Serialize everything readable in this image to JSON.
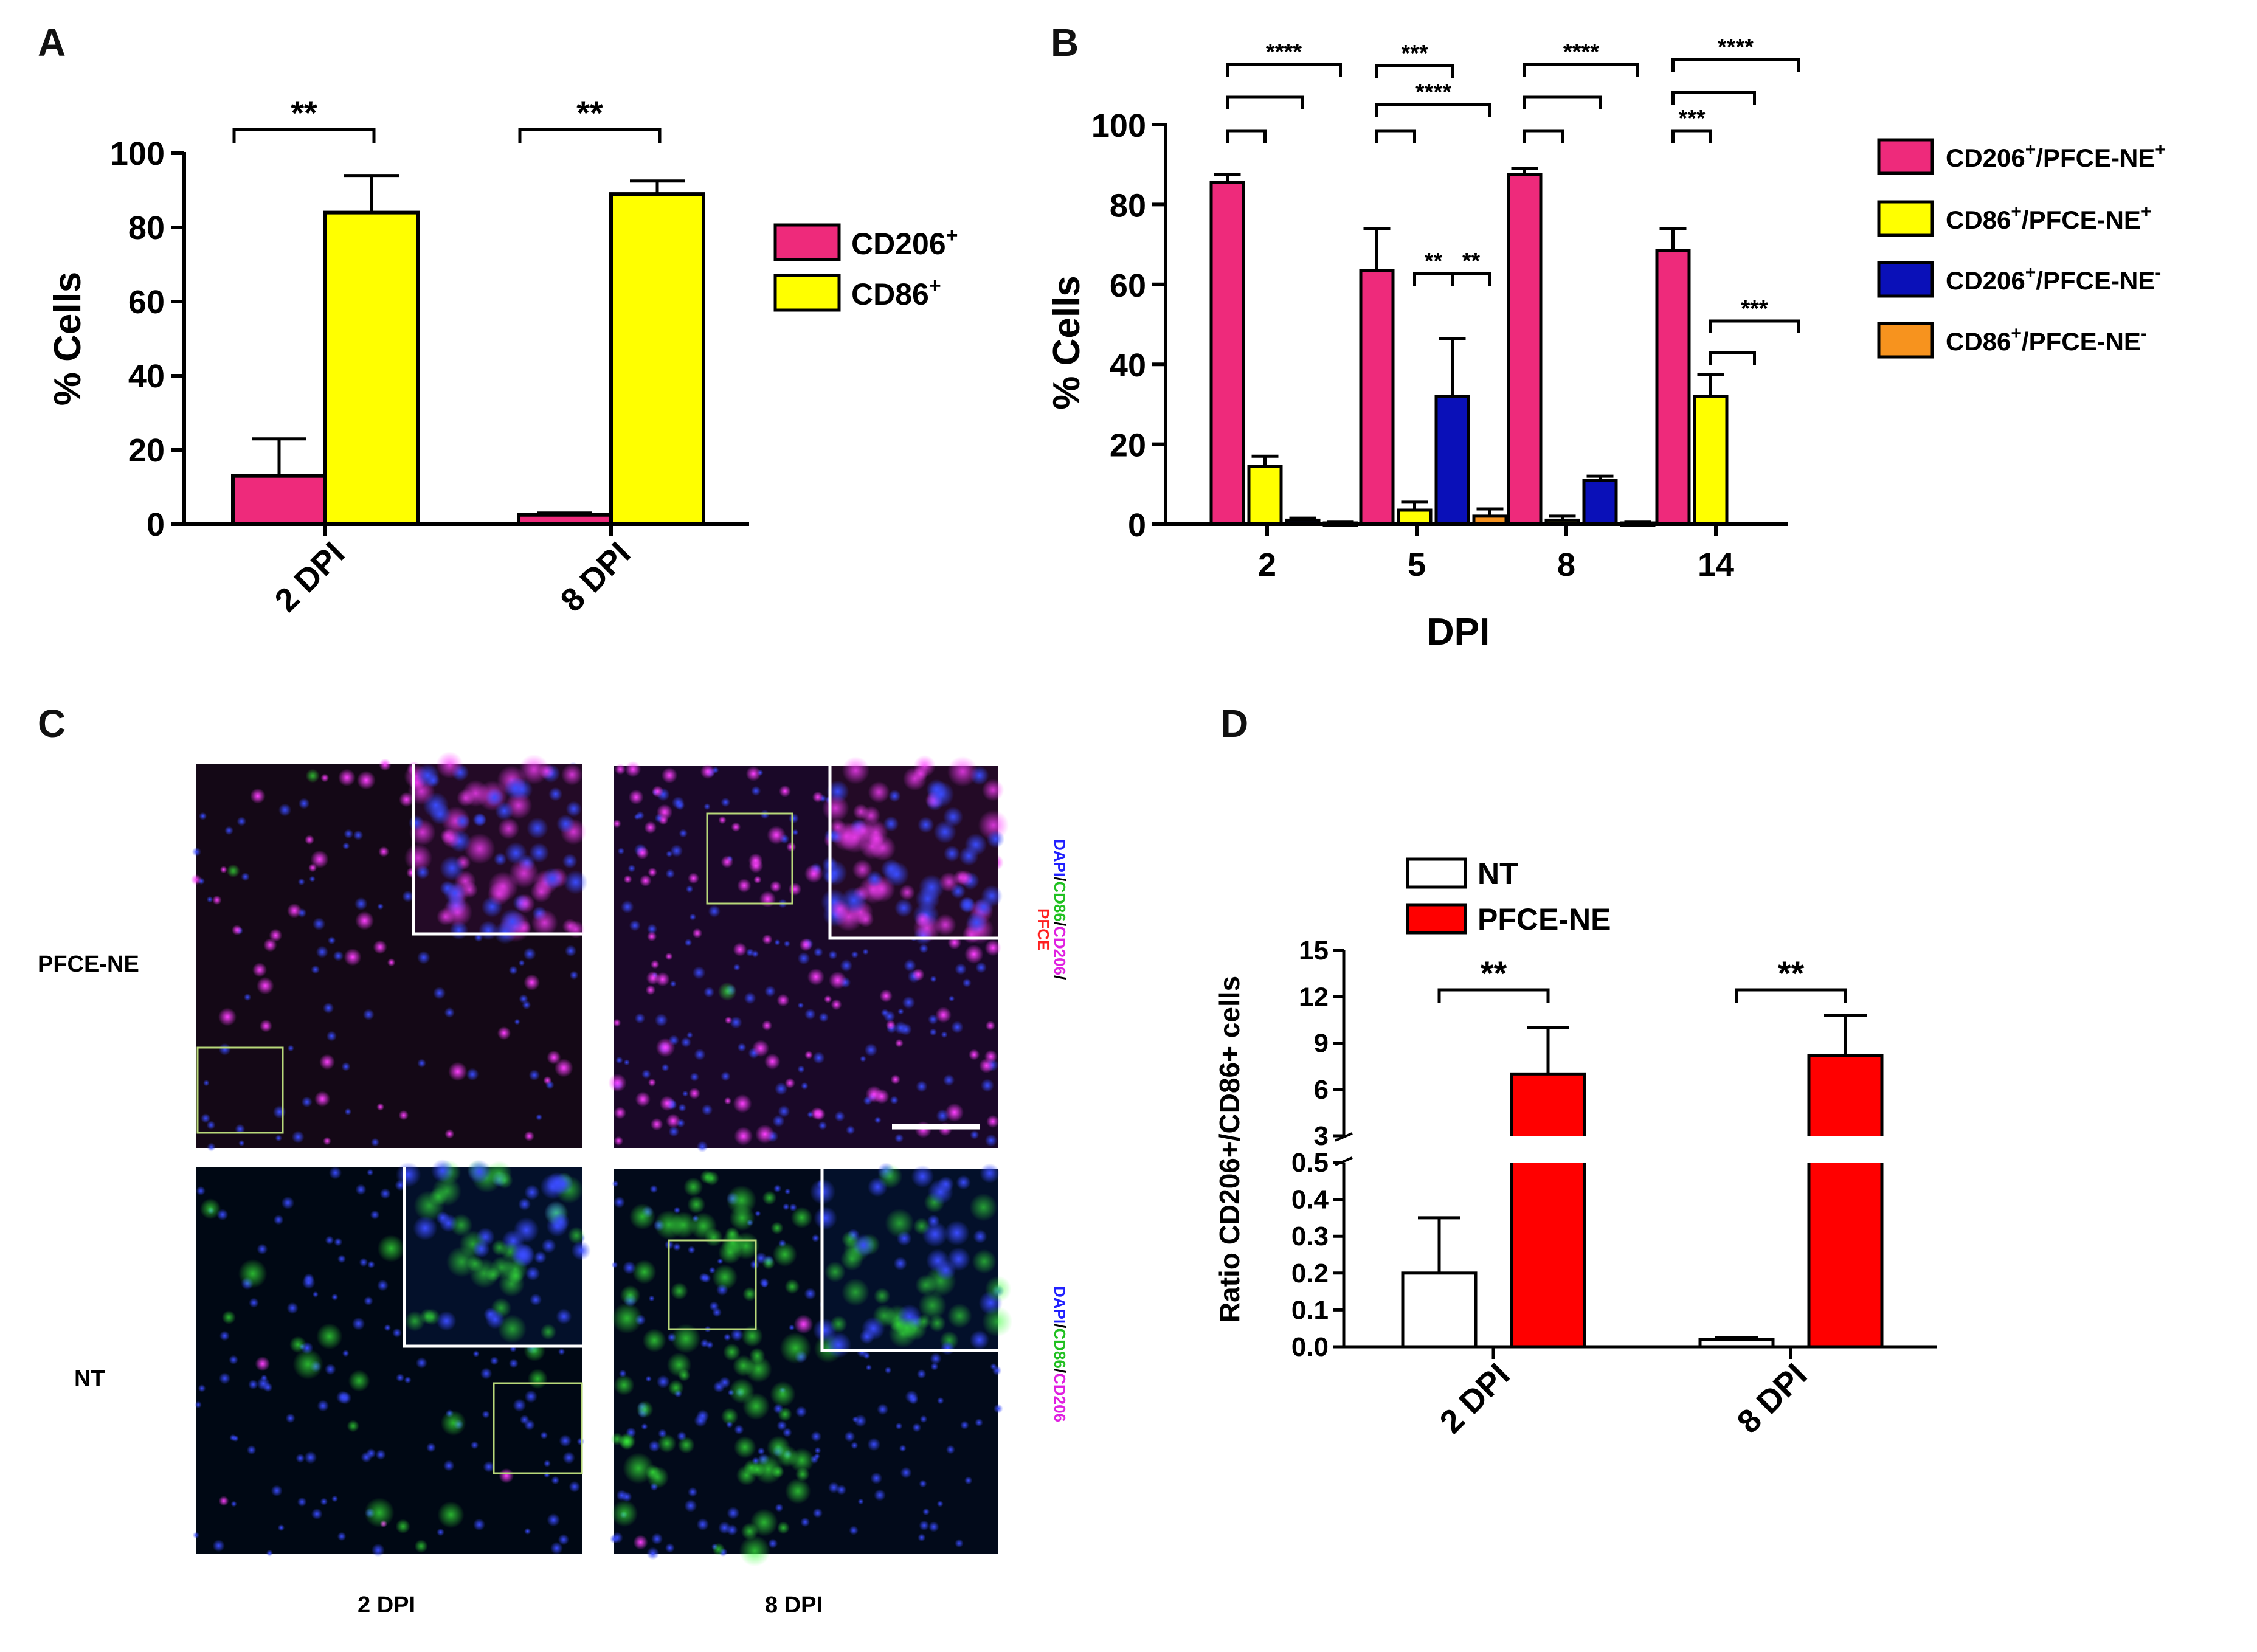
{
  "panels": {
    "a": "A",
    "b": "B",
    "c": "C",
    "d": "D"
  },
  "colors": {
    "magenta": "#ee2a7b",
    "yellow": "#ffff00",
    "blue": "#0a10b8",
    "orange": "#f7931e",
    "red": "#ff0000",
    "white": "#ffffff"
  },
  "chart_data": [
    {
      "panel": "A",
      "type": "bar",
      "categories": [
        "2 DPI",
        "8 DPI"
      ],
      "series": [
        {
          "name": "CD206",
          "sup": "+",
          "color": "#ee2a7b",
          "values": [
            13,
            2.5
          ],
          "errors": [
            10,
            0.5
          ]
        },
        {
          "name": "CD86",
          "sup": "+",
          "color": "#ffff00",
          "values": [
            84,
            89
          ],
          "errors": [
            10,
            3.5
          ]
        }
      ],
      "ylabel": "% Cells",
      "ylim": [
        0,
        100
      ],
      "yticks": [
        0,
        20,
        40,
        60,
        80,
        100
      ],
      "legend_position": "right",
      "significance": [
        {
          "category": 0,
          "from": 0,
          "to": 1,
          "label": "**"
        },
        {
          "category": 1,
          "from": 0,
          "to": 1,
          "label": "**"
        }
      ]
    },
    {
      "panel": "B",
      "type": "bar",
      "categories": [
        "2",
        "5",
        "8",
        "14"
      ],
      "xlabel": "DPI",
      "ylabel": "% Cells",
      "ylim": [
        0,
        100
      ],
      "yticks": [
        0,
        20,
        40,
        60,
        80,
        100
      ],
      "legend_position": "right",
      "series": [
        {
          "name": "CD206",
          "sup1": "+",
          "suffix": "/PFCE-NE",
          "sup2": "+",
          "color": "#ee2a7b",
          "values": [
            85.5,
            63.5,
            87.5,
            68.5
          ],
          "errors": [
            2,
            10.5,
            1.5,
            5.5
          ]
        },
        {
          "name": "CD86",
          "sup1": "+",
          "suffix": "/PFCE-NE",
          "sup2": "+",
          "color": "#ffff00",
          "values": [
            14.5,
            3.5,
            1,
            32
          ],
          "errors": [
            2.5,
            2,
            1,
            5.5
          ]
        },
        {
          "name": "CD206",
          "sup1": "+",
          "suffix": "/PFCE-NE",
          "sup2": "-",
          "color": "#0a10b8",
          "values": [
            1,
            32,
            11,
            0
          ],
          "errors": [
            0.5,
            14.5,
            1,
            0
          ]
        },
        {
          "name": "CD86",
          "sup1": "+",
          "suffix": "/PFCE-NE",
          "sup2": "-",
          "color": "#f7931e",
          "values": [
            0.3,
            2,
            0.3,
            0
          ],
          "errors": [
            0.2,
            1.8,
            0.2,
            0
          ]
        }
      ],
      "significance": [
        {
          "category": 0,
          "from": 0,
          "to": 1,
          "label": ""
        },
        {
          "category": 0,
          "from": 0,
          "to": 2,
          "label": ""
        },
        {
          "category": 0,
          "from": 0,
          "to": 3,
          "label": "****"
        },
        {
          "category": 1,
          "from": 0,
          "to": 1,
          "label": ""
        },
        {
          "category": 1,
          "from": 0,
          "to": 3,
          "label": "****"
        },
        {
          "category": 1,
          "from": 0,
          "to": 2,
          "label": "***"
        },
        {
          "category": 1,
          "from": 1,
          "to": 2,
          "label": "**"
        },
        {
          "category": 1,
          "from": 2,
          "to": 3,
          "label": "**"
        },
        {
          "category": 2,
          "from": 0,
          "to": 1,
          "label": ""
        },
        {
          "category": 2,
          "from": 0,
          "to": 2,
          "label": ""
        },
        {
          "category": 2,
          "from": 0,
          "to": 3,
          "label": "****"
        },
        {
          "category": 3,
          "from": 0,
          "to": 1,
          "label": "***"
        },
        {
          "category": 3,
          "from": 0,
          "to": 2,
          "label": ""
        },
        {
          "category": 3,
          "from": 0,
          "to": 3,
          "label": "****"
        },
        {
          "category": 3,
          "from": 1,
          "to": 2,
          "label": ""
        },
        {
          "category": 3,
          "from": 1,
          "to": 3,
          "label": "***"
        }
      ]
    },
    {
      "panel": "D",
      "type": "bar",
      "categories": [
        "2 DPI",
        "8 DPI"
      ],
      "series": [
        {
          "name": "NT",
          "color": "#ffffff",
          "values": [
            0.2,
            0.02
          ],
          "errors": [
            0.15,
            0.005
          ]
        },
        {
          "name": "PFCE-NE",
          "color": "#ff0000",
          "values": [
            7,
            8.2
          ],
          "errors": [
            3,
            2.6
          ]
        }
      ],
      "ylabel": "Ratio CD206+/CD86+ cells",
      "axis_break": true,
      "lower_ylim": [
        0,
        0.5
      ],
      "lower_yticks": [
        "0.0",
        "0.1",
        "0.2",
        "0.3",
        "0.4",
        "0.5"
      ],
      "upper_ylim": [
        3,
        15
      ],
      "upper_yticks": [
        "3",
        "6",
        "9",
        "12",
        "15"
      ],
      "legend_position": "top-left",
      "significance": [
        {
          "category": 0,
          "from": 0,
          "to": 1,
          "label": "**"
        },
        {
          "category": 1,
          "from": 0,
          "to": 1,
          "label": "**"
        }
      ]
    }
  ],
  "micrographs": {
    "row_labels": [
      "PFCE-NE",
      "NT"
    ],
    "col_labels": [
      "2 DPI",
      "8 DPI"
    ],
    "stain_top": {
      "dapi": "DAPI",
      "sep": "/",
      "cd86": "CD86",
      "cd206": "CD206",
      "pfce": "PFCE"
    },
    "stain_bottom": {
      "dapi": "DAPI",
      "sep": "/",
      "cd86": "CD86",
      "cd206": "CD206"
    }
  }
}
